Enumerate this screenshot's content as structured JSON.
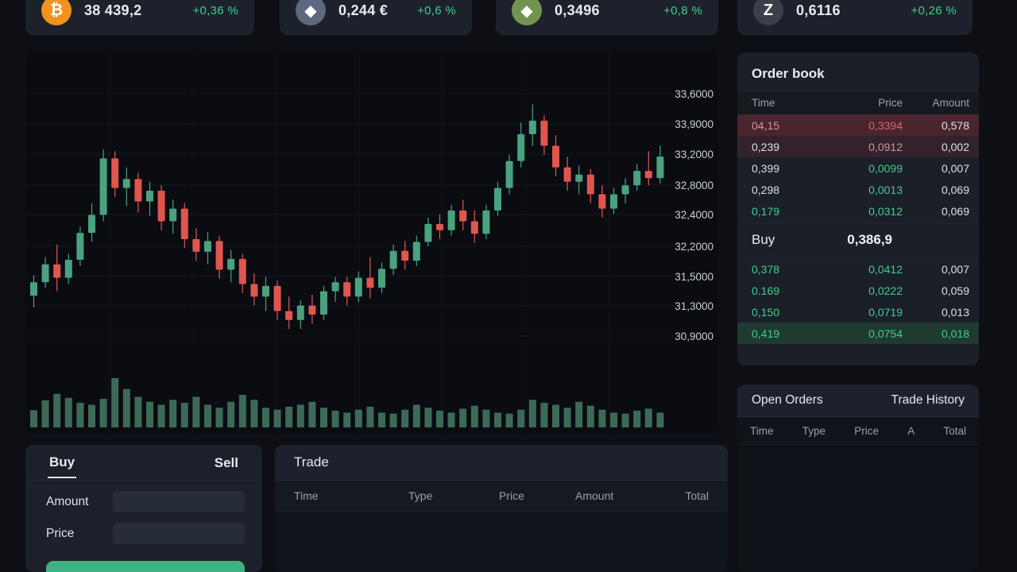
{
  "tickers": [
    {
      "icon": "bitcoin-icon",
      "glyph": "₿",
      "icon_bg": "#f0921e",
      "value": "38 439,2",
      "change": "+0,36 %"
    },
    {
      "icon": "diamond-coin-icon",
      "glyph": "◆",
      "icon_bg": "#5d6880",
      "value": "0,244 €",
      "change": "+0,6 %"
    },
    {
      "icon": "diamond-coin-icon",
      "glyph": "◆",
      "icon_bg": "#739451",
      "value": "0,3496",
      "change": "+0,8 %"
    },
    {
      "icon": "z-coin-icon",
      "glyph": "Z",
      "icon_bg": "#394049",
      "value": "0,6116",
      "change": "+0,26 %"
    }
  ],
  "order_book": {
    "title": "Order book",
    "columns": [
      "Time",
      "Price",
      "Amount"
    ],
    "asks": [
      {
        "time": "04,15",
        "price": "0,3394",
        "amount": "0,578",
        "highlight": "red-strong",
        "time_color": "red-soft",
        "price_color": "red",
        "amount_color": null
      },
      {
        "time": "0,239",
        "price": "0,0912",
        "amount": "0,002",
        "highlight": "red-soft",
        "time_color": null,
        "price_color": "red-soft",
        "amount_color": null
      },
      {
        "time": "0,399",
        "price": "0,0099",
        "amount": "0,007",
        "highlight": null,
        "time_color": null,
        "price_color": "green",
        "amount_color": null
      },
      {
        "time": "0,298",
        "price": "0,0013",
        "amount": "0,069",
        "highlight": null,
        "time_color": null,
        "price_color": "green",
        "amount_color": null
      },
      {
        "time": "0,179",
        "price": "0,0312",
        "amount": "0,069",
        "highlight": null,
        "time_color": "green",
        "price_color": "green",
        "amount_color": null
      }
    ],
    "mid_label": "Buy",
    "mid_price": "0,386,9",
    "bids": [
      {
        "time": "0,378",
        "price": "0,0412",
        "amount": "0,007",
        "highlight": null,
        "time_color": "green",
        "price_color": "green",
        "amount_color": null
      },
      {
        "time": "0.169",
        "price": "0,0222",
        "amount": "0,059",
        "highlight": null,
        "time_color": "green",
        "price_color": "green",
        "amount_color": null
      },
      {
        "time": "0,150",
        "price": "0,0719",
        "amount": "0,013",
        "highlight": null,
        "time_color": "green",
        "price_color": "green",
        "amount_color": null
      },
      {
        "time": "0,419",
        "price": "0,0754",
        "amount": "0,018",
        "highlight": "green",
        "time_color": "green",
        "price_color": "green",
        "amount_color": "green"
      }
    ]
  },
  "open_orders": {
    "tabs": [
      "Open Orders",
      "Trade History"
    ],
    "columns": [
      "Time",
      "Type",
      "Price",
      "A",
      "Total"
    ]
  },
  "trade_form": {
    "tabs": [
      "Buy",
      "Sell"
    ],
    "amount_label": "Amount",
    "price_label": "Price",
    "submit_label": ""
  },
  "trade_panel": {
    "title": "Trade",
    "columns": [
      "Time",
      "Type",
      "Price",
      "Amount",
      "Total"
    ]
  },
  "chart_data": {
    "type": "candlestick",
    "title": "",
    "y_labels": [
      "33,6000",
      "33,9000",
      "33,2000",
      "32,8000",
      "32,4000",
      "32,2000",
      "31,5000",
      "31,3000",
      "30,9000"
    ],
    "y_axis_side": "right",
    "grid": true,
    "candles": [
      [
        31.35,
        31.58,
        31.22,
        31.5
      ],
      [
        31.5,
        31.78,
        31.44,
        31.7
      ],
      [
        31.7,
        31.92,
        31.4,
        31.55
      ],
      [
        31.55,
        31.82,
        31.48,
        31.75
      ],
      [
        31.75,
        32.12,
        31.68,
        32.05
      ],
      [
        32.05,
        32.38,
        31.95,
        32.25
      ],
      [
        32.25,
        32.98,
        32.18,
        32.88
      ],
      [
        32.88,
        32.96,
        32.45,
        32.55
      ],
      [
        32.55,
        32.78,
        32.35,
        32.65
      ],
      [
        32.65,
        32.72,
        32.28,
        32.4
      ],
      [
        32.4,
        32.62,
        32.24,
        32.52
      ],
      [
        32.52,
        32.58,
        32.08,
        32.18
      ],
      [
        32.18,
        32.42,
        32.04,
        32.32
      ],
      [
        32.32,
        32.38,
        31.88,
        31.98
      ],
      [
        31.98,
        32.1,
        31.74,
        31.84
      ],
      [
        31.84,
        32.06,
        31.7,
        31.96
      ],
      [
        31.96,
        32.02,
        31.54,
        31.64
      ],
      [
        31.64,
        31.86,
        31.5,
        31.76
      ],
      [
        31.76,
        31.82,
        31.38,
        31.48
      ],
      [
        31.48,
        31.6,
        31.24,
        31.34
      ],
      [
        31.34,
        31.56,
        31.18,
        31.46
      ],
      [
        31.46,
        31.52,
        31.08,
        31.18
      ],
      [
        31.18,
        31.34,
        30.98,
        31.08
      ],
      [
        31.08,
        31.3,
        30.98,
        31.24
      ],
      [
        31.24,
        31.36,
        31.04,
        31.14
      ],
      [
        31.14,
        31.46,
        31.08,
        31.4
      ],
      [
        31.4,
        31.56,
        31.28,
        31.5
      ],
      [
        31.5,
        31.56,
        31.24,
        31.34
      ],
      [
        31.34,
        31.62,
        31.28,
        31.55
      ],
      [
        31.55,
        31.78,
        31.32,
        31.44
      ],
      [
        31.44,
        31.72,
        31.38,
        31.65
      ],
      [
        31.65,
        31.92,
        31.58,
        31.85
      ],
      [
        31.85,
        31.96,
        31.64,
        31.74
      ],
      [
        31.74,
        32.02,
        31.68,
        31.95
      ],
      [
        31.95,
        32.22,
        31.9,
        32.15
      ],
      [
        32.15,
        32.26,
        31.98,
        32.08
      ],
      [
        32.08,
        32.36,
        32.02,
        32.3
      ],
      [
        32.3,
        32.42,
        32.08,
        32.18
      ],
      [
        32.18,
        32.3,
        31.94,
        32.04
      ],
      [
        32.04,
        32.36,
        31.98,
        32.3
      ],
      [
        32.3,
        32.62,
        32.24,
        32.55
      ],
      [
        32.55,
        32.92,
        32.48,
        32.85
      ],
      [
        32.85,
        33.28,
        32.78,
        33.15
      ],
      [
        33.15,
        33.48,
        33.02,
        33.3
      ],
      [
        33.3,
        33.36,
        32.92,
        33.02
      ],
      [
        33.02,
        33.14,
        32.68,
        32.78
      ],
      [
        32.78,
        32.9,
        32.52,
        32.62
      ],
      [
        32.62,
        32.8,
        32.48,
        32.7
      ],
      [
        32.7,
        32.76,
        32.38,
        32.48
      ],
      [
        32.48,
        32.58,
        32.22,
        32.32
      ],
      [
        32.32,
        32.55,
        32.26,
        32.48
      ],
      [
        32.48,
        32.66,
        32.38,
        32.58
      ],
      [
        32.58,
        32.82,
        32.52,
        32.74
      ],
      [
        32.74,
        32.96,
        32.58,
        32.66
      ],
      [
        32.66,
        33.02,
        32.6,
        32.9
      ]
    ],
    "volume": [
      0.35,
      0.55,
      0.68,
      0.6,
      0.5,
      0.46,
      0.58,
      1.0,
      0.78,
      0.62,
      0.52,
      0.46,
      0.56,
      0.5,
      0.62,
      0.46,
      0.4,
      0.52,
      0.66,
      0.56,
      0.4,
      0.36,
      0.42,
      0.46,
      0.52,
      0.4,
      0.34,
      0.3,
      0.36,
      0.42,
      0.3,
      0.28,
      0.36,
      0.46,
      0.4,
      0.34,
      0.3,
      0.38,
      0.44,
      0.36,
      0.3,
      0.28,
      0.36,
      0.56,
      0.5,
      0.46,
      0.4,
      0.52,
      0.44,
      0.36,
      0.3,
      0.28,
      0.34,
      0.38,
      0.3
    ],
    "colors": {
      "up": "#4aa27e",
      "down": "#e0564f",
      "volume": "#3d6a57",
      "accent_green": "#3ecf8e",
      "accent_red": "#e2636a",
      "axis_text": "#c9ced6"
    }
  }
}
